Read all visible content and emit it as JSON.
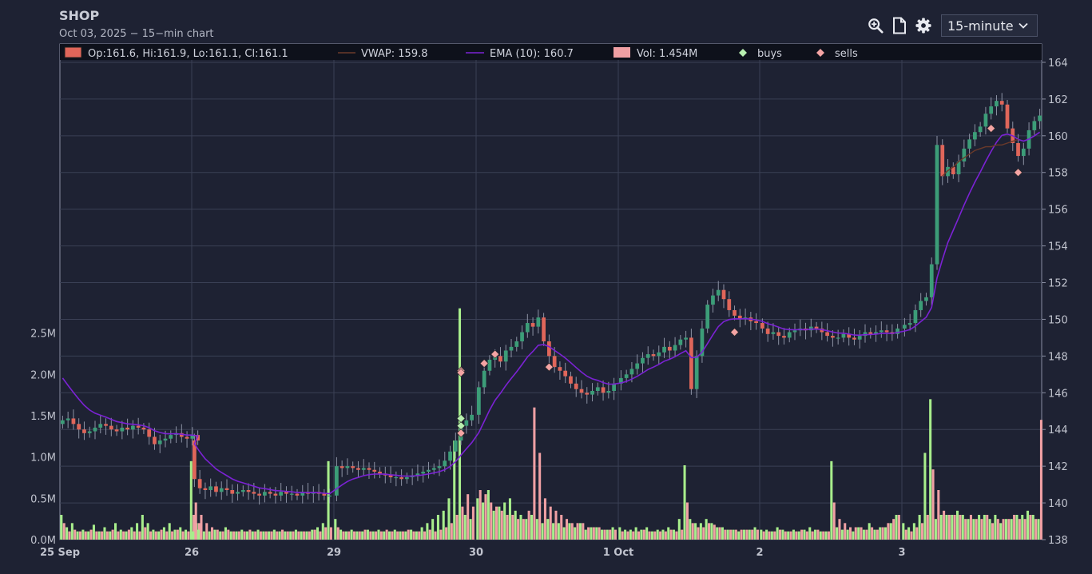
{
  "header": {
    "ticker": "SHOP",
    "subtitle": "Oct 03, 2025 − 15−min chart"
  },
  "toolbar": {
    "zoom_icon": "magnifier-plus-icon",
    "page_icon": "document-icon",
    "settings_icon": "gear-icon",
    "interval_selected": "15-minute"
  },
  "legend": {
    "ohlc_text": "Op:161.6, Hi:161.9, Lo:161.1, Cl:161.1",
    "vwap_text": "VWAP: 159.8",
    "ema_text": "EMA (10): 160.7",
    "vol_text": "Vol: 1.454M",
    "buys_text": "buys",
    "sells_text": "sells"
  },
  "colors": {
    "background": "#1e2233",
    "grid": "#3a4055",
    "up": "#3c9d78",
    "down": "#e0665a",
    "vol_up": "#a8ee8c",
    "vol_down": "#f0a0a4",
    "ema": "#7b22d4",
    "vwap": "#6b3a2a",
    "buy_marker": "#b8f0b0",
    "sell_marker": "#f4a4a4"
  },
  "chart_data": {
    "type": "candlestick",
    "symbol": "SHOP",
    "interval": "15-minute",
    "price_ticks": [
      138,
      140,
      142,
      144,
      146,
      148,
      150,
      152,
      154,
      156,
      158,
      160,
      162,
      164
    ],
    "price_range": [
      138,
      165
    ],
    "volume_ticks": [
      "0.0M",
      "0.5M",
      "1.0M",
      "1.5M",
      "2.0M",
      "2.5M"
    ],
    "volume_tick_values": [
      0,
      0.5,
      1.0,
      1.5,
      2.0,
      2.5
    ],
    "volume_range": [
      0,
      6.0
    ],
    "x_labels": [
      "25 Sep",
      "26",
      "29",
      "30",
      "1 Oct",
      "2",
      "3"
    ],
    "bars_per_session": 26,
    "sessions": [
      {
        "label": "25 Sep",
        "close": [
          144.5,
          144.6,
          144.3,
          144.0,
          143.8,
          143.9,
          144.1,
          144.3,
          144.2,
          144.0,
          143.9,
          144.1,
          144.0,
          144.2,
          144.1,
          144.0,
          143.6,
          143.2,
          143.4,
          143.5,
          143.7,
          143.8,
          143.6,
          143.5,
          143.7,
          143.4
        ],
        "buy_volume": [
          0.3,
          0.15,
          0.2,
          0.1,
          0.12,
          0.1,
          0.18,
          0.1,
          0.15,
          0.1,
          0.2,
          0.12,
          0.1,
          0.15,
          0.2,
          0.3,
          0.2,
          0.12,
          0.1,
          0.15,
          0.2,
          0.12,
          0.15,
          0.12,
          0.95,
          0.2
        ],
        "sell_volume": [
          0.2,
          0.1,
          0.12,
          0.1,
          0.1,
          0.12,
          0.1,
          0.1,
          0.1,
          0.12,
          0.1,
          0.1,
          0.12,
          0.1,
          0.1,
          0.15,
          0.1,
          0.1,
          0.12,
          0.1,
          0.1,
          0.12,
          0.1,
          0.1,
          0.3,
          0.2
        ]
      },
      {
        "label": "26",
        "close": [
          141.3,
          140.8,
          140.7,
          140.9,
          140.6,
          140.8,
          140.7,
          140.5,
          140.6,
          140.7,
          140.6,
          140.5,
          140.4,
          140.6,
          140.5,
          140.4,
          140.6,
          140.5,
          140.5,
          140.4,
          140.6,
          140.5,
          140.6,
          140.5,
          140.4,
          140.4
        ],
        "buy_volume": [
          0.1,
          0.12,
          0.1,
          0.1,
          0.12,
          0.1,
          0.15,
          0.1,
          0.1,
          0.12,
          0.1,
          0.1,
          0.12,
          0.1,
          0.1,
          0.12,
          0.1,
          0.1,
          0.1,
          0.12,
          0.1,
          0.1,
          0.12,
          0.15,
          0.2,
          0.95
        ],
        "sell_volume": [
          0.45,
          0.3,
          0.2,
          0.15,
          0.12,
          0.1,
          0.12,
          0.1,
          0.1,
          0.1,
          0.12,
          0.1,
          0.1,
          0.1,
          0.1,
          0.1,
          0.12,
          0.1,
          0.1,
          0.1,
          0.1,
          0.1,
          0.12,
          0.1,
          0.15,
          0.15
        ]
      },
      {
        "label": "29",
        "close": [
          142.0,
          141.9,
          142.0,
          141.9,
          141.8,
          141.9,
          141.8,
          141.7,
          141.6,
          141.5,
          141.4,
          141.4,
          141.3,
          141.4,
          141.5,
          141.6,
          141.7,
          141.8,
          141.9,
          142.0,
          142.3,
          142.8,
          143.4,
          144.2,
          144.5,
          144.8
        ],
        "buy_volume": [
          0.25,
          0.12,
          0.1,
          0.12,
          0.1,
          0.1,
          0.12,
          0.1,
          0.12,
          0.1,
          0.1,
          0.12,
          0.1,
          0.1,
          0.12,
          0.1,
          0.15,
          0.2,
          0.25,
          0.3,
          0.35,
          0.5,
          1.2,
          2.8,
          0.3,
          0.25
        ],
        "sell_volume": [
          0.15,
          0.1,
          0.1,
          0.1,
          0.1,
          0.12,
          0.1,
          0.1,
          0.1,
          0.12,
          0.1,
          0.1,
          0.1,
          0.12,
          0.1,
          0.1,
          0.1,
          0.12,
          0.1,
          0.12,
          0.15,
          0.2,
          0.3,
          0.4,
          0.55,
          0.4
        ]
      },
      {
        "label": "30",
        "close": [
          146.3,
          147.2,
          147.8,
          148.0,
          147.7,
          148.3,
          148.5,
          148.8,
          149.3,
          149.8,
          149.6,
          150.1,
          148.8,
          148.0,
          147.4,
          147.2,
          146.9,
          146.5,
          146.2,
          146.0,
          145.9,
          146.1,
          146.3,
          146.0,
          146.1,
          146.5
        ],
        "buy_volume": [
          0.5,
          0.45,
          0.6,
          0.35,
          0.4,
          0.45,
          0.5,
          0.35,
          0.3,
          0.25,
          0.3,
          0.25,
          0.2,
          0.25,
          0.2,
          0.2,
          0.15,
          0.2,
          0.15,
          0.2,
          0.12,
          0.15,
          0.15,
          0.12,
          0.12,
          0.15
        ],
        "sell_volume": [
          0.6,
          0.55,
          0.45,
          0.4,
          0.35,
          0.3,
          0.3,
          0.25,
          0.25,
          0.35,
          1.6,
          1.05,
          0.5,
          0.4,
          0.35,
          0.3,
          0.25,
          0.2,
          0.2,
          0.2,
          0.15,
          0.15,
          0.15,
          0.12,
          0.12,
          0.12
        ]
      },
      {
        "label": "1 Oct",
        "close": [
          146.8,
          147.0,
          147.3,
          147.6,
          147.9,
          148.1,
          148.0,
          148.2,
          148.5,
          148.3,
          148.6,
          148.9,
          149.0,
          146.2,
          148.0,
          149.5,
          150.8,
          151.3,
          151.6,
          151.1,
          150.5,
          150.2,
          150.0,
          150.1,
          149.9,
          149.8
        ],
        "buy_volume": [
          0.15,
          0.12,
          0.12,
          0.15,
          0.12,
          0.15,
          0.1,
          0.12,
          0.12,
          0.15,
          0.12,
          0.25,
          0.9,
          0.25,
          0.2,
          0.2,
          0.25,
          0.2,
          0.15,
          0.15,
          0.12,
          0.12,
          0.1,
          0.12,
          0.12,
          0.15
        ],
        "sell_volume": [
          0.1,
          0.1,
          0.1,
          0.1,
          0.12,
          0.1,
          0.1,
          0.1,
          0.1,
          0.12,
          0.1,
          0.12,
          0.45,
          0.2,
          0.15,
          0.15,
          0.2,
          0.18,
          0.15,
          0.12,
          0.12,
          0.12,
          0.12,
          0.12,
          0.12,
          0.12
        ]
      },
      {
        "label": "2",
        "close": [
          149.5,
          149.2,
          149.3,
          149.1,
          149.0,
          149.3,
          149.4,
          149.5,
          149.4,
          149.6,
          149.5,
          149.3,
          149.1,
          149.0,
          149.0,
          149.2,
          149.0,
          148.9,
          149.1,
          149.3,
          149.2,
          149.3,
          149.4,
          149.3,
          149.2,
          149.5
        ],
        "buy_volume": [
          0.12,
          0.12,
          0.1,
          0.15,
          0.12,
          0.1,
          0.12,
          0.1,
          0.12,
          0.15,
          0.12,
          0.1,
          0.1,
          0.95,
          0.15,
          0.12,
          0.12,
          0.1,
          0.15,
          0.12,
          0.2,
          0.12,
          0.15,
          0.15,
          0.2,
          0.3
        ],
        "sell_volume": [
          0.1,
          0.1,
          0.1,
          0.12,
          0.1,
          0.1,
          0.1,
          0.12,
          0.1,
          0.1,
          0.12,
          0.1,
          0.1,
          0.45,
          0.25,
          0.2,
          0.15,
          0.15,
          0.15,
          0.12,
          0.15,
          0.12,
          0.15,
          0.2,
          0.25,
          0.3
        ]
      },
      {
        "label": "3",
        "close": [
          149.7,
          149.8,
          150.5,
          151.0,
          151.2,
          153.0,
          159.5,
          157.8,
          158.3,
          157.9,
          158.6,
          159.3,
          159.8,
          160.2,
          160.5,
          161.2,
          161.6,
          161.9,
          161.7,
          160.4,
          159.6,
          158.9,
          159.3,
          160.3,
          160.8,
          161.1
        ],
        "buy_volume": [
          0.2,
          0.15,
          0.2,
          0.3,
          1.05,
          1.7,
          0.25,
          0.3,
          0.3,
          0.3,
          0.35,
          0.3,
          0.25,
          0.25,
          0.3,
          0.3,
          0.25,
          0.3,
          0.2,
          0.25,
          0.25,
          0.3,
          0.3,
          0.35,
          0.3,
          0.25
        ],
        "sell_volume": [
          0.12,
          0.1,
          0.15,
          0.2,
          0.3,
          0.85,
          0.6,
          0.35,
          0.3,
          0.3,
          0.3,
          0.25,
          0.3,
          0.25,
          0.25,
          0.3,
          0.2,
          0.25,
          0.25,
          0.25,
          0.3,
          0.25,
          0.25,
          0.3,
          0.25,
          1.45
        ]
      }
    ],
    "ema_start": 146.8,
    "vwap_session3": [
      157.8,
      158.1,
      158.3,
      158.6,
      158.8,
      159.0,
      159.2,
      159.3,
      159.4,
      159.4,
      159.5,
      159.5,
      159.6,
      159.7,
      159.8
    ],
    "buys": [
      {
        "session": 2,
        "bar": 23,
        "price": 144.2
      },
      {
        "session": 2,
        "bar": 23,
        "price": 144.6
      }
    ],
    "sells": [
      {
        "session": 2,
        "bar": 23,
        "price": 147.2
      },
      {
        "session": 2,
        "bar": 23,
        "price": 147.1
      },
      {
        "session": 2,
        "bar": 23,
        "price": 143.8
      },
      {
        "session": 3,
        "bar": 1,
        "price": 147.6
      },
      {
        "session": 3,
        "bar": 3,
        "price": 148.1
      },
      {
        "session": 3,
        "bar": 13,
        "price": 147.4
      },
      {
        "session": 4,
        "bar": 21,
        "price": 149.3
      },
      {
        "session": 6,
        "bar": 16,
        "price": 160.4
      },
      {
        "session": 6,
        "bar": 21,
        "price": 158.0
      }
    ]
  }
}
